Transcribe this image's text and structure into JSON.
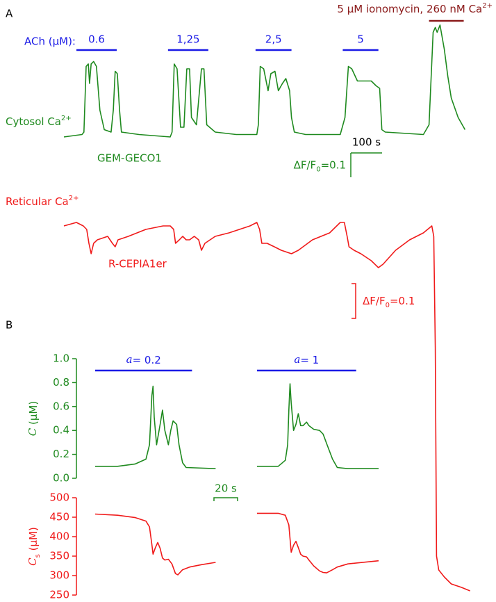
{
  "chart_data": [
    {
      "type": "line",
      "panel": "A",
      "color": "#1f8a1f",
      "label": {
        "text": "Cytosol Ca",
        "sup": "2+"
      },
      "sensor": "GEM-GECO1",
      "stimulus_title": "ACh (μM):",
      "stimulus_color": "#1a1ae6",
      "stimuli": [
        {
          "label": "0.6",
          "start": 40,
          "end": 169
        },
        {
          "label": "1,25",
          "start": 333,
          "end": 462
        },
        {
          "label": "2,5",
          "start": 613,
          "end": 728
        },
        {
          "label": "5",
          "start": 892,
          "end": 1006
        }
      ],
      "treatment": {
        "label": {
          "text": "5 μM ionomycin, 260 nM Ca",
          "sup": "2+"
        },
        "start": 1168,
        "end": 1279,
        "color": "#8b1a1a"
      },
      "scale_bar": {
        "time": 100,
        "time_label": "100 s",
        "amplitude": 0.1,
        "amplitude_label": {
          "text": "ΔF/F",
          "sub": "0",
          "tail": "=0.1"
        }
      },
      "x": [
        0,
        58,
        64,
        71,
        78,
        82,
        87,
        95,
        104,
        115,
        129,
        151,
        158,
        164,
        171,
        178,
        184,
        240,
        340,
        346,
        353,
        362,
        373,
        384,
        393,
        402,
        408,
        424,
        440,
        448,
        457,
        484,
        551,
        617,
        622,
        628,
        639,
        653,
        662,
        675,
        686,
        699,
        710,
        722,
        728,
        737,
        773,
        884,
        899,
        910,
        921,
        939,
        961,
        983,
        999,
        1010,
        1017,
        1028,
        1150,
        1168,
        1181,
        1188,
        1194,
        1203,
        1217,
        1228,
        1239,
        1261,
        1283
      ],
      "values": [
        0,
        0.01,
        0.02,
        0.29,
        0.3,
        0.22,
        0.3,
        0.31,
        0.29,
        0.11,
        0.03,
        0.02,
        0.11,
        0.27,
        0.26,
        0.11,
        0.02,
        0.01,
        0,
        0.02,
        0.3,
        0.28,
        0.04,
        0.04,
        0.28,
        0.28,
        0.08,
        0.05,
        0.28,
        0.28,
        0.05,
        0.02,
        0.01,
        0.01,
        0.05,
        0.29,
        0.28,
        0.19,
        0.26,
        0.27,
        0.19,
        0.22,
        0.24,
        0.19,
        0.08,
        0.02,
        0.01,
        0.01,
        0.08,
        0.29,
        0.28,
        0.23,
        0.23,
        0.23,
        0.21,
        0.2,
        0.03,
        0.02,
        0.01,
        0.05,
        0.43,
        0.45,
        0.43,
        0.46,
        0.36,
        0.25,
        0.16,
        0.08,
        0.03
      ]
    },
    {
      "type": "line",
      "color": "#f01a1a",
      "label": {
        "text": "Reticular Ca",
        "sup": "2+"
      },
      "sensor": "R-CEPIA1er",
      "scale_bar": {
        "amplitude": 0.1,
        "amplitude_label": {
          "text": "ΔF/F",
          "sub": "0",
          "tail": "=0.1"
        }
      },
      "x": [
        0,
        40,
        62,
        73,
        80,
        87,
        95,
        107,
        140,
        155,
        164,
        173,
        206,
        262,
        317,
        340,
        351,
        357,
        369,
        380,
        391,
        402,
        417,
        431,
        440,
        451,
        484,
        528,
        595,
        617,
        626,
        633,
        650,
        673,
        695,
        728,
        750,
        795,
        850,
        884,
        897,
        906,
        912,
        928,
        950,
        983,
        1006,
        1021,
        1061,
        1106,
        1150,
        1177,
        1183,
        1188,
        1192,
        1199,
        1217,
        1239,
        1272,
        1299
      ],
      "values": [
        0,
        0.01,
        0,
        -0.01,
        -0.05,
        -0.08,
        -0.05,
        -0.04,
        -0.03,
        -0.05,
        -0.06,
        -0.04,
        -0.03,
        -0.01,
        0,
        0,
        -0.01,
        -0.05,
        -0.04,
        -0.03,
        -0.04,
        -0.04,
        -0.03,
        -0.04,
        -0.07,
        -0.05,
        -0.03,
        -0.02,
        0,
        0.01,
        -0.01,
        -0.05,
        -0.05,
        -0.06,
        -0.07,
        -0.08,
        -0.07,
        -0.04,
        -0.02,
        0.01,
        0.01,
        -0.03,
        -0.06,
        -0.07,
        -0.08,
        -0.1,
        -0.12,
        -0.11,
        -0.07,
        -0.04,
        -0.02,
        0,
        -0.03,
        -0.35,
        -0.95,
        -0.99,
        -1.01,
        -1.03,
        -1.04,
        -1.05
      ]
    },
    {
      "type": "line",
      "panel": "B",
      "color": "#1f8a1f",
      "ylabel": {
        "italic": "C",
        "text": " (μM)"
      },
      "ylim": [
        0,
        1
      ],
      "yticks": [
        {
          "value": 0,
          "label": "0.0"
        },
        0.2,
        0.4,
        0.6,
        0.8,
        {
          "value": 1,
          "label": "1.0"
        }
      ],
      "stimulus_color": "#1a1ae6",
      "stimuli": [
        {
          "label": {
            "italic": "a",
            "text": "= 0.2"
          },
          "start": 0,
          "end": 82
        },
        {
          "label": {
            "italic": "a",
            "text": "= 1"
          },
          "start": 137,
          "end": 221
        }
      ],
      "scale_bar": {
        "time": 20,
        "time_label": "20 s"
      },
      "series": [
        {
          "x": [
            0,
            19,
            34,
            43,
            46,
            48,
            49,
            50,
            52,
            55,
            57,
            59,
            62,
            64,
            66,
            69,
            71,
            74,
            77,
            102
          ],
          "values": [
            0.1,
            0.1,
            0.12,
            0.16,
            0.28,
            0.69,
            0.77,
            0.51,
            0.28,
            0.45,
            0.57,
            0.4,
            0.28,
            0.4,
            0.48,
            0.45,
            0.28,
            0.13,
            0.09,
            0.08
          ]
        },
        {
          "x": [
            137,
            155,
            161,
            163,
            164,
            165,
            166,
            168,
            170,
            172,
            174,
            176,
            179,
            181,
            185,
            190,
            193,
            196,
            201,
            205,
            214,
            240
          ],
          "values": [
            0.1,
            0.1,
            0.15,
            0.28,
            0.57,
            0.79,
            0.63,
            0.4,
            0.45,
            0.54,
            0.44,
            0.44,
            0.47,
            0.44,
            0.41,
            0.4,
            0.37,
            0.29,
            0.16,
            0.09,
            0.08,
            0.08
          ]
        }
      ]
    },
    {
      "type": "line",
      "color": "#f01a1a",
      "ylabel": {
        "italic": "C",
        "sub": "s",
        "text": " (μM)"
      },
      "ylim": [
        250,
        500
      ],
      "yticks": [
        250,
        300,
        350,
        400,
        450,
        500
      ],
      "series": [
        {
          "x": [
            0,
            19,
            34,
            43,
            46,
            48,
            49,
            51,
            53,
            55,
            57,
            59,
            62,
            65,
            68,
            70,
            74,
            80,
            90,
            102
          ],
          "values": [
            458,
            455,
            449,
            440,
            425,
            380,
            355,
            372,
            385,
            370,
            345,
            340,
            342,
            330,
            305,
            302,
            315,
            322,
            328,
            334
          ]
        },
        {
          "x": [
            137,
            155,
            161,
            164,
            165,
            166,
            168,
            170,
            172,
            174,
            176,
            179,
            181,
            185,
            190,
            193,
            196,
            201,
            205,
            214,
            240
          ],
          "values": [
            460,
            460,
            455,
            430,
            395,
            360,
            378,
            388,
            372,
            355,
            350,
            348,
            340,
            325,
            312,
            308,
            307,
            315,
            322,
            330,
            338
          ]
        }
      ]
    }
  ]
}
